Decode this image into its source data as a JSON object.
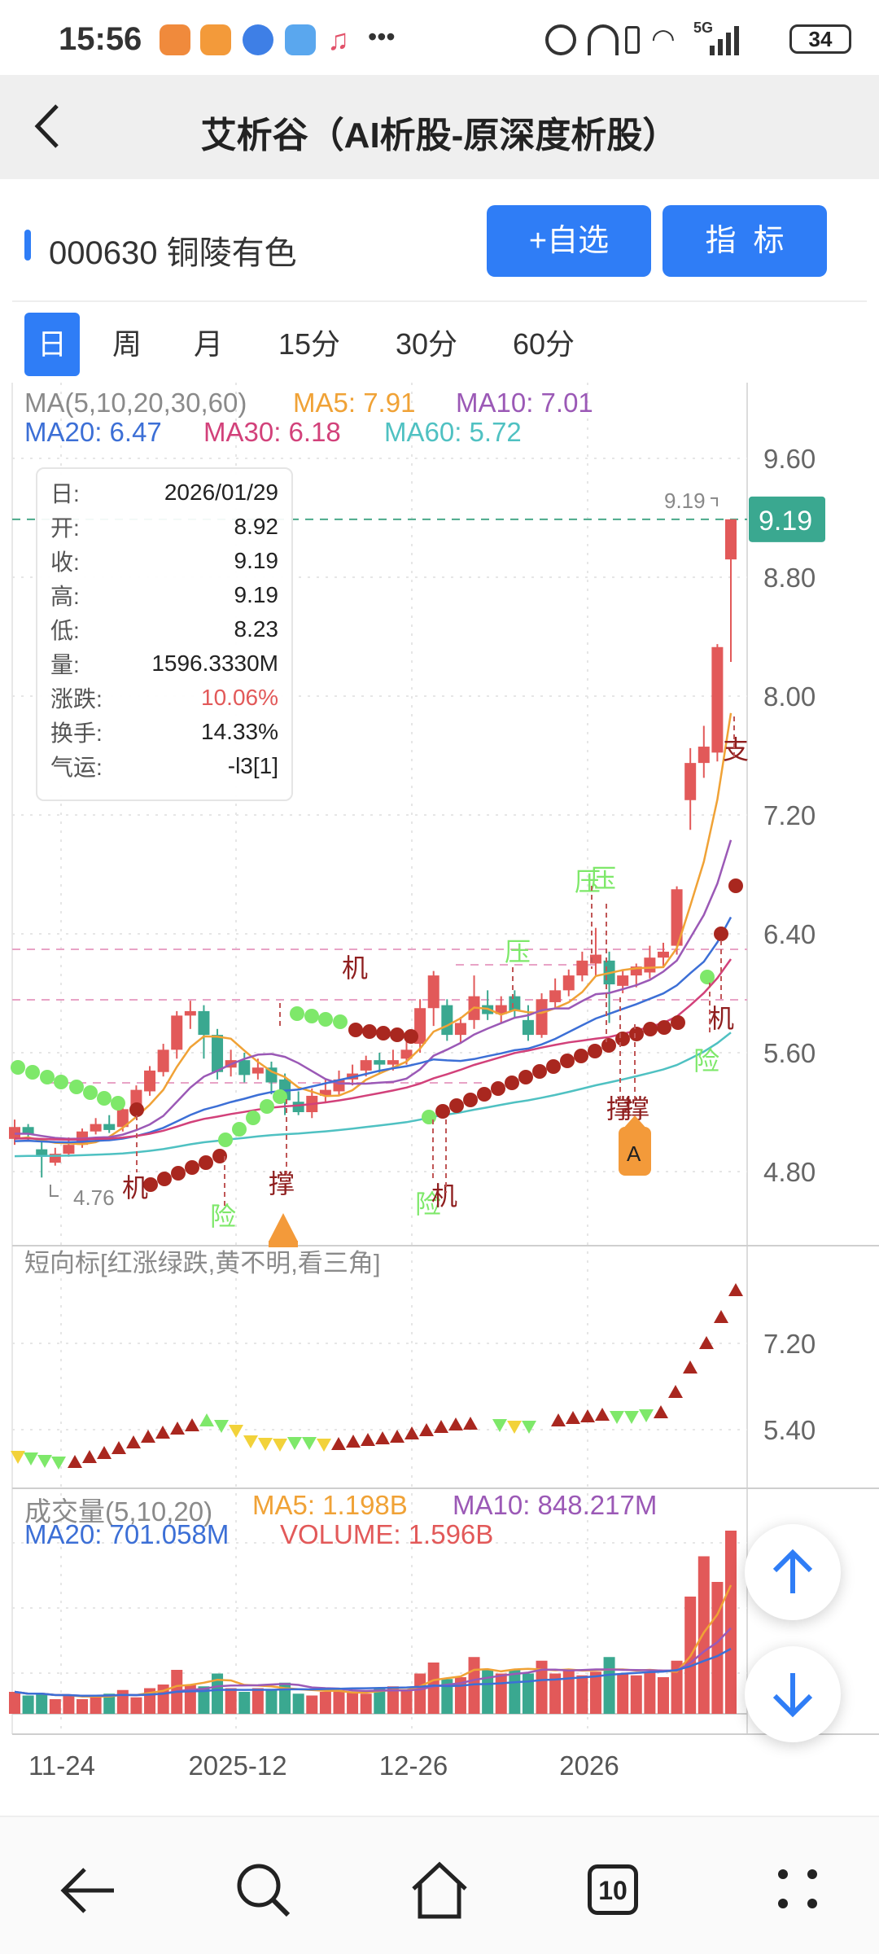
{
  "status_bar": {
    "time": "15:56",
    "battery": "34",
    "signal_label": "5G"
  },
  "header": {
    "title": "艾析谷（AI析股-原深度析股）"
  },
  "stock": {
    "code_name": "000630 铜陵有色",
    "add_watch_label": "+自选",
    "indicator_label": "指  标"
  },
  "tabs": [
    {
      "label": "日",
      "active": true
    },
    {
      "label": "周",
      "active": false
    },
    {
      "label": "月",
      "active": false
    },
    {
      "label": "15分",
      "active": false
    },
    {
      "label": "30分",
      "active": false
    },
    {
      "label": "60分",
      "active": false
    }
  ],
  "ma_legend": {
    "title": "MA(5,10,20,30,60)",
    "ma5": "MA5: 7.91",
    "ma10": "MA10: 7.01",
    "ma20": "MA20: 6.47",
    "ma30": "MA30: 6.18",
    "ma60": "MA60: 5.72"
  },
  "info_box": [
    {
      "k": "日:",
      "v": "2026/01/29"
    },
    {
      "k": "开:",
      "v": "8.92"
    },
    {
      "k": "收:",
      "v": "9.19"
    },
    {
      "k": "高:",
      "v": "9.19"
    },
    {
      "k": "低:",
      "v": "8.23"
    },
    {
      "k": "量:",
      "v": "1596.3330M"
    },
    {
      "k": "涨跌:",
      "v": "10.06%"
    },
    {
      "k": "换手:",
      "v": "14.33%"
    },
    {
      "k": "气运:",
      "v": "-l3[1]"
    }
  ],
  "price_axis": [
    "9.60",
    "8.80",
    "8.00",
    "7.20",
    "6.40",
    "5.60",
    "4.80"
  ],
  "last_price_tag": "9.19",
  "high_marker": "9.19",
  "low_marker": "4.76",
  "signal_labels": {
    "machine": "机",
    "support": "撑",
    "risk": "险",
    "pressure": "压",
    "zhi": "支",
    "a": "A"
  },
  "short_indicator": {
    "title": "短向标[红涨绿跌,黄不明,看三角]",
    "axis": [
      "7.20",
      "5.40"
    ]
  },
  "volume_legend": {
    "title": "成交量(5,10,20)",
    "ma5": "MA5: 1.198B",
    "ma10": "MA10: 848.217M",
    "ma20": "MA20: 701.058M",
    "volume": "VOLUME: 1.596B"
  },
  "date_axis": [
    "11-24",
    "2025-12",
    "12-26",
    "2026"
  ],
  "bottom_nav": {
    "tab_count": "10"
  },
  "colors": {
    "accent": "#2f7df6",
    "up": "#e25959",
    "down": "#3aa890",
    "ma5": "#f0a236",
    "ma10": "#9b59b6",
    "ma20": "#3c6fd6",
    "ma30": "#d2417a",
    "ma60": "#4fc1c2"
  },
  "chart_data": {
    "type": "candlestick",
    "price_range": [
      4.4,
      9.8
    ],
    "candles": [
      [
        5.02,
        5.1,
        5.15,
        4.98
      ],
      [
        5.1,
        5.05,
        5.12,
        5.0
      ],
      [
        4.95,
        4.9,
        5.02,
        4.76
      ],
      [
        4.86,
        4.92,
        4.96,
        4.84
      ],
      [
        4.92,
        4.98,
        5.03,
        4.9
      ],
      [
        4.98,
        5.07,
        5.09,
        4.96
      ],
      [
        5.07,
        5.12,
        5.16,
        5.05
      ],
      [
        5.12,
        5.08,
        5.18,
        5.06
      ],
      [
        5.1,
        5.22,
        5.24,
        5.07
      ],
      [
        5.24,
        5.35,
        5.38,
        5.2
      ],
      [
        5.34,
        5.48,
        5.51,
        5.31
      ],
      [
        5.47,
        5.62,
        5.66,
        5.44
      ],
      [
        5.62,
        5.85,
        5.88,
        5.56
      ],
      [
        5.85,
        5.88,
        5.95,
        5.76
      ],
      [
        5.88,
        5.72,
        5.92,
        5.56
      ],
      [
        5.72,
        5.47,
        5.76,
        5.42
      ],
      [
        5.5,
        5.55,
        5.62,
        5.44
      ],
      [
        5.55,
        5.45,
        5.6,
        5.4
      ],
      [
        5.46,
        5.5,
        5.56,
        5.42
      ],
      [
        5.5,
        5.4,
        5.54,
        5.32
      ],
      [
        5.42,
        5.28,
        5.46,
        5.18
      ],
      [
        5.27,
        5.2,
        5.34,
        5.18
      ],
      [
        5.2,
        5.31,
        5.36,
        5.16
      ],
      [
        5.31,
        5.35,
        5.42,
        5.26
      ],
      [
        5.34,
        5.42,
        5.48,
        5.31
      ],
      [
        5.42,
        5.46,
        5.52,
        5.38
      ],
      [
        5.48,
        5.55,
        5.58,
        5.44
      ],
      [
        5.55,
        5.52,
        5.6,
        5.46
      ],
      [
        5.52,
        5.55,
        5.62,
        5.48
      ],
      [
        5.56,
        5.62,
        5.68,
        5.52
      ],
      [
        5.66,
        5.9,
        5.96,
        5.6
      ],
      [
        5.9,
        6.12,
        6.15,
        5.78
      ],
      [
        5.92,
        5.72,
        5.96,
        5.68
      ],
      [
        5.72,
        5.8,
        5.84,
        5.66
      ],
      [
        5.82,
        5.98,
        6.12,
        5.76
      ],
      [
        5.92,
        5.86,
        6.02,
        5.82
      ],
      [
        5.86,
        5.92,
        5.98,
        5.8
      ],
      [
        5.98,
        5.88,
        6.02,
        5.84
      ],
      [
        5.82,
        5.72,
        5.92,
        5.68
      ],
      [
        5.72,
        5.96,
        6.0,
        5.7
      ],
      [
        5.94,
        6.02,
        6.1,
        5.9
      ],
      [
        6.02,
        6.12,
        6.16,
        5.98
      ],
      [
        6.12,
        6.22,
        6.28,
        6.08
      ],
      [
        6.2,
        6.26,
        6.44,
        6.12
      ],
      [
        6.22,
        6.06,
        6.28,
        5.8
      ],
      [
        6.05,
        6.12,
        6.16,
        6.0
      ],
      [
        6.12,
        6.18,
        6.2,
        6.04
      ],
      [
        6.14,
        6.24,
        6.32,
        6.1
      ],
      [
        6.24,
        6.28,
        6.34,
        6.18
      ],
      [
        6.32,
        6.7,
        6.72,
        6.26
      ],
      [
        7.3,
        7.55,
        7.65,
        7.1
      ],
      [
        7.55,
        7.66,
        7.8,
        7.45
      ],
      [
        7.62,
        8.33,
        8.35,
        7.56
      ],
      [
        8.92,
        9.19,
        9.19,
        8.23
      ]
    ]
  }
}
